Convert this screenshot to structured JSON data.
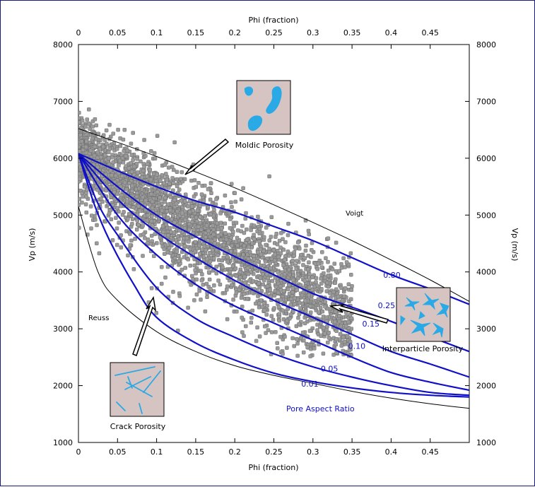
{
  "chart_data": {
    "type": "scatter",
    "title": "",
    "xlabel": "Phi (fraction)",
    "ylabel": "Vp (m/s)",
    "xlim": [
      0,
      0.5
    ],
    "ylim": [
      1000,
      8000
    ],
    "x_ticks": [
      "0",
      "0.05",
      "0.1",
      "0.15",
      "0.2",
      "0.25",
      "0.3",
      "0.35",
      "0.4",
      "0.45"
    ],
    "y_ticks": [
      "1000",
      "2000",
      "3000",
      "4000",
      "5000",
      "6000",
      "7000",
      "8000"
    ],
    "grid": false,
    "scatter": {
      "name": "",
      "color": "#9a9a9a",
      "edge_color": "#6a6a6a",
      "approx_count": 3000,
      "trend_x": [
        0,
        0.05,
        0.1,
        0.15,
        0.2,
        0.25,
        0.3,
        0.35
      ],
      "trend_y": [
        6150,
        5650,
        5150,
        4750,
        4300,
        3900,
        3500,
        3100
      ]
    },
    "bound_curves": [
      {
        "label": "Voigt",
        "color": "#000000",
        "x": [
          0,
          0.05,
          0.1,
          0.15,
          0.2,
          0.25,
          0.3,
          0.35,
          0.4,
          0.45,
          0.5
        ],
        "y": [
          6520,
          6280,
          6030,
          5760,
          5480,
          5180,
          4870,
          4550,
          4210,
          3860,
          3480
        ]
      },
      {
        "label": "Reuss",
        "color": "#000000",
        "x": [
          0,
          0.025,
          0.05,
          0.1,
          0.15,
          0.2,
          0.25,
          0.3,
          0.35,
          0.4,
          0.45,
          0.5
        ],
        "y": [
          5150,
          4000,
          3500,
          2950,
          2600,
          2350,
          2180,
          2040,
          1900,
          1780,
          1680,
          1600
        ]
      }
    ],
    "aspect_ratio_curves": [
      {
        "label": "0.80",
        "x": [
          0,
          0.05,
          0.1,
          0.15,
          0.2,
          0.25,
          0.3,
          0.35,
          0.4,
          0.45,
          0.5
        ],
        "y": [
          6080,
          5780,
          5500,
          5250,
          5050,
          4800,
          4550,
          4250,
          3950,
          3700,
          3430
        ]
      },
      {
        "label": "0.25",
        "x": [
          0,
          0.05,
          0.1,
          0.15,
          0.2,
          0.25,
          0.3,
          0.35,
          0.4,
          0.45,
          0.5
        ],
        "y": [
          6080,
          5500,
          5000,
          4620,
          4270,
          3950,
          3620,
          3380,
          3130,
          2860,
          2600
        ]
      },
      {
        "label": "0.15",
        "x": [
          0,
          0.05,
          0.1,
          0.15,
          0.2,
          0.25,
          0.3,
          0.35,
          0.4,
          0.45,
          0.5
        ],
        "y": [
          6080,
          5280,
          4700,
          4250,
          3850,
          3500,
          3200,
          2900,
          2600,
          2380,
          2150
        ]
      },
      {
        "label": "0.10",
        "x": [
          0,
          0.05,
          0.1,
          0.15,
          0.2,
          0.25,
          0.3,
          0.35,
          0.4,
          0.45,
          0.5
        ],
        "y": [
          6080,
          5000,
          4300,
          3780,
          3400,
          3100,
          2800,
          2500,
          2230,
          2060,
          1920
        ]
      },
      {
        "label": "0.05",
        "x": [
          0,
          0.025,
          0.05,
          0.1,
          0.15,
          0.2,
          0.25,
          0.3,
          0.35,
          0.4,
          0.45,
          0.5
        ],
        "y": [
          6080,
          5200,
          4650,
          3720,
          3180,
          2850,
          2560,
          2330,
          2150,
          2000,
          1880,
          1830
        ]
      },
      {
        "label": "0.01",
        "x": [
          0,
          0.02,
          0.04,
          0.07,
          0.1,
          0.15,
          0.2,
          0.25,
          0.3,
          0.35,
          0.4,
          0.45,
          0.5
        ],
        "y": [
          6080,
          5200,
          4550,
          3800,
          3200,
          2750,
          2450,
          2220,
          2070,
          1960,
          1880,
          1830,
          1800
        ]
      }
    ],
    "curve_color": "#1010c8",
    "curve_family_label": "Pore Aspect Ratio",
    "annotations": [
      {
        "text": "Moldic Porosity",
        "arrow_to": [
          0.13,
          5600
        ]
      },
      {
        "text": "Interparticle Porosity",
        "arrow_to": [
          0.32,
          3450
        ]
      },
      {
        "text": "Crack Porosity",
        "arrow_to": [
          0.1,
          3550
        ]
      }
    ]
  }
}
